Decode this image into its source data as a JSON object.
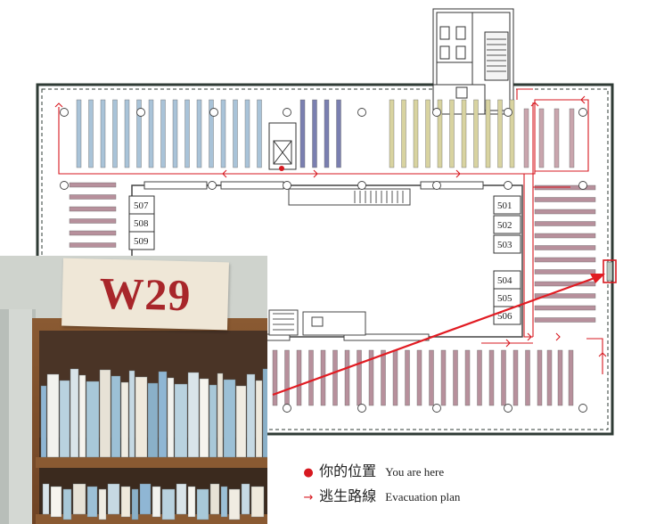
{
  "rooms": {
    "left": [
      "507",
      "508",
      "509"
    ],
    "right": [
      "501",
      "502",
      "503",
      "504",
      "505",
      "506"
    ]
  },
  "shelf_sign": "W29",
  "legend": {
    "you_are_here_zh": "你的位置",
    "you_are_here_en": "You are here",
    "evacuation_zh": "逃生路線",
    "evacuation_en": "Evacuation plan"
  },
  "colors": {
    "accent_red": "#d71920",
    "shelf_blue": "#a9c3d8",
    "shelf_navy": "#7a7fb0",
    "shelf_olive": "#d8d3a0",
    "shelf_rose": "#c9a5ad",
    "shelf_mauve": "#b7909c",
    "wall": "#2f3b35",
    "sign_red": "#a8262a"
  },
  "icons": {
    "you_are_here": "red-dot-icon",
    "evacuation": "arrow-right-icon",
    "stairs": "staircase-icon"
  }
}
